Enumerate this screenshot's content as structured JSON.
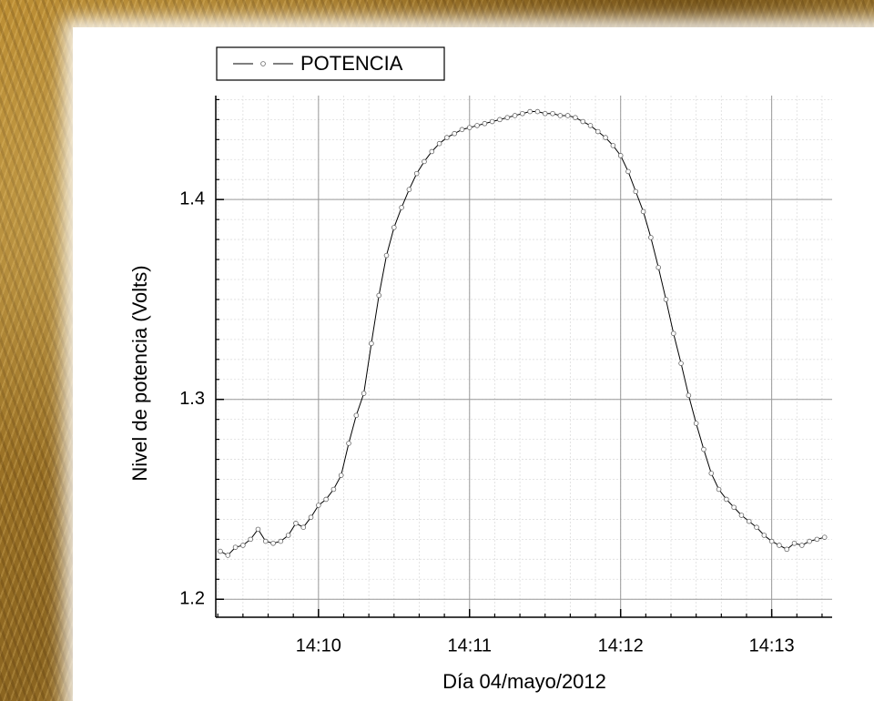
{
  "chart_data": {
    "type": "line",
    "x_label": "Día 04/mayo/2012",
    "y_label": "Nivel de potencia (Volts)",
    "x": [
      9.35,
      9.4,
      9.45,
      9.5,
      9.55,
      9.6,
      9.65,
      9.7,
      9.75,
      9.8,
      9.85,
      9.9,
      9.95,
      10.0,
      10.05,
      10.1,
      10.15,
      10.2,
      10.25,
      10.3,
      10.35,
      10.4,
      10.45,
      10.5,
      10.55,
      10.6,
      10.65,
      10.7,
      10.75,
      10.8,
      10.85,
      10.9,
      10.95,
      11.0,
      11.05,
      11.1,
      11.15,
      11.2,
      11.25,
      11.3,
      11.35,
      11.4,
      11.45,
      11.5,
      11.55,
      11.6,
      11.65,
      11.7,
      11.75,
      11.8,
      11.85,
      11.9,
      11.95,
      12.0,
      12.05,
      12.1,
      12.15,
      12.2,
      12.25,
      12.3,
      12.35,
      12.4,
      12.45,
      12.5,
      12.55,
      12.6,
      12.65,
      12.7,
      12.75,
      12.8,
      12.85,
      12.9,
      12.95,
      13.0,
      13.05,
      13.1,
      13.15,
      13.2,
      13.25,
      13.3,
      13.35
    ],
    "series": [
      {
        "name": "POTENCIA",
        "color": "#000000",
        "values": [
          1.224,
          1.222,
          1.226,
          1.227,
          1.23,
          1.235,
          1.229,
          1.228,
          1.229,
          1.232,
          1.238,
          1.236,
          1.241,
          1.247,
          1.25,
          1.255,
          1.262,
          1.278,
          1.292,
          1.303,
          1.328,
          1.352,
          1.372,
          1.386,
          1.396,
          1.405,
          1.413,
          1.419,
          1.424,
          1.428,
          1.431,
          1.433,
          1.435,
          1.436,
          1.437,
          1.438,
          1.439,
          1.44,
          1.441,
          1.442,
          1.443,
          1.444,
          1.444,
          1.443,
          1.443,
          1.442,
          1.442,
          1.441,
          1.439,
          1.437,
          1.434,
          1.431,
          1.427,
          1.422,
          1.414,
          1.404,
          1.394,
          1.381,
          1.366,
          1.35,
          1.333,
          1.318,
          1.302,
          1.288,
          1.275,
          1.263,
          1.255,
          1.25,
          1.246,
          1.242,
          1.239,
          1.236,
          1.232,
          1.229,
          1.227,
          1.225,
          1.228,
          1.227,
          1.229,
          1.23,
          1.231
        ]
      }
    ],
    "xlim": [
      9.32,
      13.4
    ],
    "ylim": [
      1.191,
      1.452
    ],
    "xticks": [
      {
        "value": 10,
        "label": "14:10"
      },
      {
        "value": 11,
        "label": "14:11"
      },
      {
        "value": 12,
        "label": "14:12"
      },
      {
        "value": 13,
        "label": "14:13"
      }
    ],
    "yticks": [
      1.2,
      1.3,
      1.4
    ],
    "grid": true,
    "minor_grid": true,
    "legend": "top-left"
  }
}
